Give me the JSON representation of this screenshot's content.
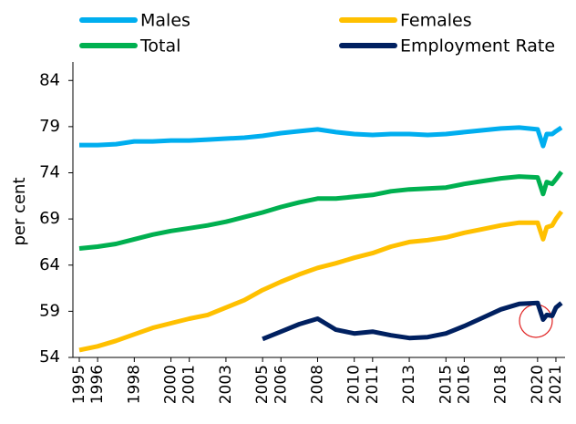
{
  "chart_data": {
    "type": "line",
    "y_label": "per cent",
    "x": [
      1995,
      1996,
      1997,
      1998,
      1999,
      2000,
      2001,
      2002,
      2003,
      2004,
      2005,
      2006,
      2007,
      2008,
      2009,
      2010,
      2011,
      2012,
      2013,
      2014,
      2015,
      2016,
      2017,
      2018,
      2019,
      2020,
      2020.3,
      2020.5,
      2020.8,
      2021,
      2021.3
    ],
    "series": [
      {
        "name": "Males",
        "color": "#00aeef",
        "values": [
          77,
          77,
          77.1,
          77.4,
          77.4,
          77.5,
          77.5,
          77.6,
          77.7,
          77.8,
          78,
          78.3,
          78.5,
          78.7,
          78.4,
          78.2,
          78.1,
          78.2,
          78.2,
          78.1,
          78.2,
          78.4,
          78.6,
          78.8,
          78.9,
          78.7,
          76.9,
          78.2,
          78.2,
          78.5,
          78.9
        ]
      },
      {
        "name": "Females",
        "color": "#ffc000",
        "values": [
          54.8,
          55.2,
          55.8,
          56.5,
          57.2,
          57.7,
          58.2,
          58.6,
          59.4,
          60.2,
          61.3,
          62.2,
          63,
          63.7,
          64.2,
          64.8,
          65.3,
          66,
          66.5,
          66.7,
          67,
          67.5,
          67.9,
          68.3,
          68.6,
          68.6,
          66.8,
          68.1,
          68.3,
          69,
          69.8
        ]
      },
      {
        "name": "Total",
        "color": "#00b050",
        "values": [
          65.8,
          66,
          66.3,
          66.8,
          67.3,
          67.7,
          68,
          68.3,
          68.7,
          69.2,
          69.7,
          70.3,
          70.8,
          71.2,
          71.2,
          71.4,
          71.6,
          72,
          72.2,
          72.3,
          72.4,
          72.8,
          73.1,
          73.4,
          73.6,
          73.5,
          71.7,
          73,
          72.8,
          73.3,
          74.1
        ]
      },
      {
        "name": "Employment Rate",
        "color": "#002060",
        "values": [
          null,
          null,
          null,
          null,
          null,
          null,
          null,
          null,
          null,
          null,
          56,
          56.8,
          57.6,
          58.2,
          57,
          56.6,
          56.8,
          56.4,
          56.1,
          56.2,
          56.6,
          57.4,
          58.3,
          59.2,
          59.8,
          59.9,
          58.1,
          58.6,
          58.5,
          59.4,
          59.9
        ]
      }
    ],
    "xlim": [
      1995,
      2021.3
    ],
    "xticks": [
      1995,
      1996,
      1998,
      2000,
      2001,
      2003,
      2005,
      2006,
      2008,
      2010,
      2011,
      2013,
      2015,
      2016,
      2018,
      2020,
      2021
    ],
    "ylim": [
      54,
      86
    ],
    "yticks": [
      54,
      59,
      64,
      69,
      74,
      79,
      84
    ],
    "grid": false
  }
}
